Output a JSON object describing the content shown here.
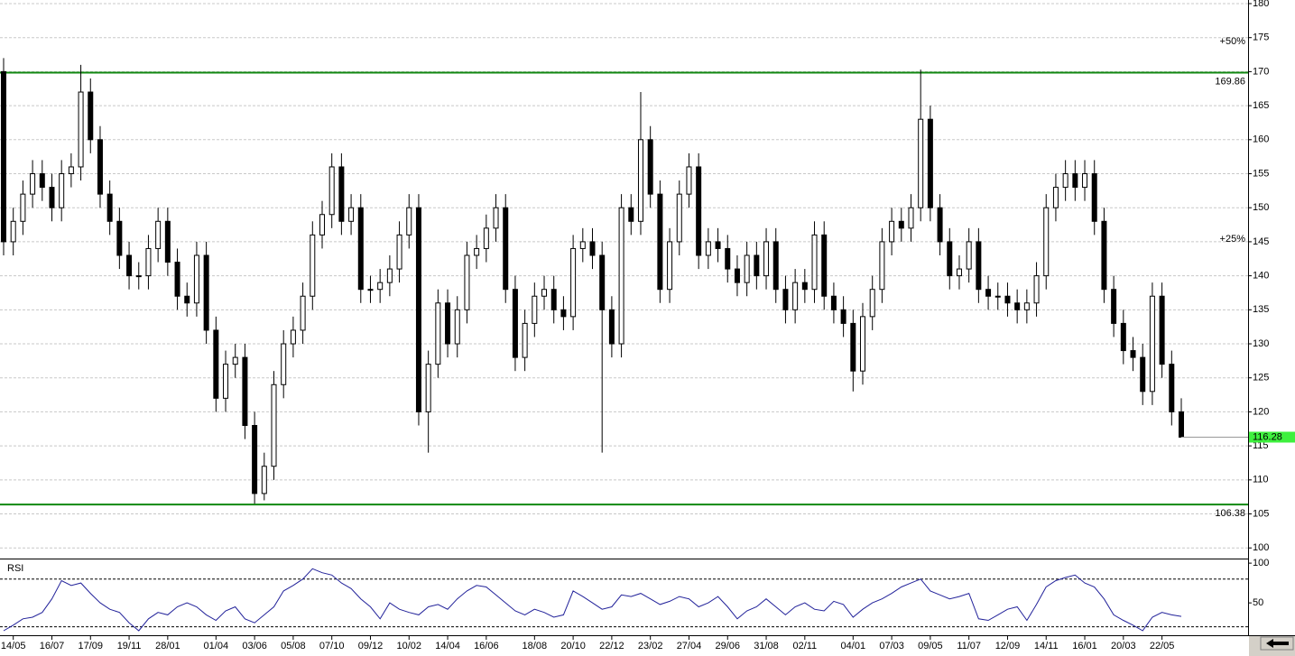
{
  "chart_data": [
    {
      "type": "candlestick",
      "categories": [
        null,
        "14/05",
        null,
        null,
        null,
        "16/07",
        null,
        null,
        null,
        "17/09",
        null,
        null,
        null,
        "19/11",
        null,
        null,
        null,
        "28/01",
        null,
        null,
        null,
        null,
        "01/04",
        null,
        null,
        null,
        "03/06",
        null,
        null,
        null,
        "05/08",
        null,
        null,
        null,
        "07/10",
        null,
        null,
        null,
        "09/12",
        null,
        null,
        null,
        "10/02",
        null,
        null,
        null,
        "14/04",
        null,
        null,
        null,
        "16/06",
        null,
        null,
        null,
        null,
        "18/08",
        null,
        null,
        null,
        "20/10",
        null,
        null,
        null,
        "22/12",
        null,
        null,
        null,
        "23/02",
        null,
        null,
        null,
        "27/04",
        null,
        null,
        null,
        "29/06",
        null,
        null,
        null,
        "31/08",
        null,
        null,
        null,
        "02/11",
        null,
        null,
        null,
        null,
        "04/01",
        null,
        null,
        null,
        "07/03",
        null,
        null,
        null,
        "09/05",
        null,
        null,
        null,
        "11/07",
        null,
        null,
        null,
        "12/09",
        null,
        null,
        null,
        "14/11",
        null,
        null,
        null,
        "16/01",
        null,
        null,
        null,
        "20/03",
        null,
        null,
        null,
        "22/05",
        null,
        null
      ],
      "open": [
        170,
        145,
        148,
        152,
        155,
        153,
        150,
        155,
        156,
        167,
        160,
        152,
        148,
        143,
        140,
        140,
        144,
        148,
        142,
        137,
        136,
        143,
        132,
        122,
        127,
        128,
        118,
        108,
        112,
        124,
        130,
        132,
        137,
        146,
        149,
        156,
        148,
        150,
        138,
        138,
        139,
        141,
        146,
        150,
        120,
        127,
        136,
        130,
        135,
        143,
        144,
        147,
        150,
        138,
        128,
        133,
        137,
        138,
        135,
        134,
        144,
        145,
        143,
        135,
        130,
        150,
        148,
        160,
        152,
        138,
        145,
        152,
        156,
        143,
        145,
        144,
        141,
        139,
        143,
        140,
        145,
        138,
        135,
        139,
        138,
        146,
        137,
        135,
        133,
        126,
        134,
        138,
        145,
        148,
        147,
        150,
        163,
        150,
        145,
        140,
        141,
        145,
        138,
        137,
        137,
        136,
        135,
        136,
        140,
        150,
        153,
        155,
        153,
        155,
        148,
        138,
        133,
        129,
        128,
        123,
        137,
        127,
        120
      ],
      "high": [
        172,
        150,
        154,
        157,
        157,
        155,
        157,
        158,
        171,
        169,
        162,
        154,
        150,
        145,
        142,
        146,
        150,
        150,
        144,
        139,
        145,
        145,
        134,
        129,
        130,
        130,
        120,
        114,
        126,
        132,
        134,
        139,
        148,
        151,
        158,
        158,
        152,
        152,
        140,
        141,
        143,
        148,
        152,
        152,
        129,
        138,
        138,
        137,
        145,
        146,
        149,
        152,
        152,
        140,
        135,
        139,
        140,
        140,
        137,
        146,
        147,
        147,
        145,
        137,
        152,
        152,
        167,
        162,
        154,
        147,
        154,
        158,
        158,
        147,
        147,
        146,
        143,
        145,
        145,
        147,
        147,
        140,
        141,
        141,
        148,
        148,
        139,
        137,
        135,
        136,
        140,
        147,
        150,
        150,
        152,
        170.3,
        165,
        152,
        147,
        143,
        147,
        147,
        140,
        139,
        139,
        138,
        138,
        142,
        152,
        155,
        157,
        157,
        157,
        157,
        150,
        140,
        135,
        131,
        130,
        139,
        139,
        129,
        122
      ],
      "low": [
        143,
        143,
        146,
        150,
        151,
        148,
        148,
        153,
        154,
        158,
        150,
        146,
        141,
        138,
        138,
        138,
        142,
        140,
        135,
        134,
        134,
        130,
        120,
        120,
        125,
        116,
        106.5,
        107,
        110,
        122,
        128,
        130,
        135,
        144,
        147,
        146,
        146,
        136,
        136,
        136,
        137,
        139,
        144,
        118,
        114,
        125,
        128,
        128,
        133,
        141,
        142,
        145,
        136,
        126,
        126,
        131,
        135,
        133,
        132,
        132,
        142,
        141,
        114,
        128,
        128,
        146,
        146,
        150,
        136,
        136,
        143,
        150,
        141,
        141,
        142,
        139,
        137,
        137,
        138,
        138,
        136,
        133,
        133,
        136,
        136,
        135,
        133,
        131,
        123,
        124,
        132,
        136,
        143,
        145,
        145,
        148,
        148,
        143,
        138,
        138,
        139,
        136,
        135,
        135,
        134,
        133,
        133,
        134,
        138,
        148,
        151,
        151,
        151,
        146,
        136,
        131,
        127,
        126,
        121,
        121,
        125,
        118,
        116.28
      ],
      "close": [
        145,
        148,
        152,
        155,
        153,
        150,
        155,
        156,
        167,
        160,
        152,
        148,
        143,
        140,
        140,
        144,
        148,
        142,
        137,
        136,
        143,
        132,
        122,
        127,
        128,
        118,
        108,
        112,
        124,
        130,
        132,
        137,
        146,
        149,
        156,
        148,
        150,
        138,
        138,
        139,
        141,
        146,
        150,
        120,
        127,
        136,
        130,
        135,
        143,
        144,
        147,
        150,
        138,
        128,
        133,
        137,
        138,
        135,
        134,
        144,
        145,
        143,
        135,
        130,
        150,
        148,
        160,
        152,
        138,
        145,
        152,
        156,
        143,
        145,
        144,
        141,
        139,
        143,
        140,
        145,
        138,
        135,
        139,
        138,
        146,
        137,
        135,
        133,
        126,
        134,
        138,
        145,
        148,
        147,
        150,
        163,
        150,
        145,
        140,
        141,
        145,
        138,
        137,
        137,
        136,
        135,
        136,
        140,
        150,
        153,
        155,
        153,
        155,
        148,
        138,
        133,
        129,
        128,
        123,
        137,
        127,
        120,
        116.28
      ],
      "ylim": [
        98.44,
        180.53
      ],
      "yticks": [
        100,
        105,
        110,
        115,
        120,
        125,
        130,
        135,
        140,
        145,
        150,
        155,
        160,
        165,
        170,
        175,
        180
      ],
      "grid": true,
      "hlines": [
        169.86,
        106.38
      ],
      "hline_color": "#118811",
      "levels": [
        {
          "value": 174.42,
          "label": "+50%"
        },
        {
          "value": 145.35,
          "label": "+25%"
        }
      ],
      "last_color": "#3ef03e"
    },
    {
      "type": "line",
      "title": "RSI",
      "color": "#22229a",
      "values": [
        15,
        22,
        30,
        32,
        38,
        55,
        78,
        72,
        75,
        62,
        50,
        42,
        38,
        25,
        15,
        30,
        38,
        35,
        45,
        50,
        45,
        35,
        28,
        40,
        45,
        30,
        25,
        35,
        45,
        65,
        72,
        80,
        93,
        88,
        85,
        75,
        68,
        55,
        45,
        30,
        50,
        42,
        38,
        35,
        45,
        48,
        42,
        55,
        65,
        72,
        70,
        60,
        50,
        40,
        35,
        42,
        38,
        32,
        35,
        65,
        58,
        50,
        42,
        45,
        60,
        58,
        62,
        55,
        48,
        52,
        58,
        55,
        45,
        50,
        58,
        45,
        30,
        40,
        45,
        55,
        45,
        35,
        45,
        50,
        42,
        40,
        52,
        48,
        32,
        42,
        50,
        55,
        62,
        70,
        75,
        80,
        65,
        60,
        55,
        58,
        62,
        30,
        28,
        35,
        42,
        45,
        28,
        48,
        70,
        78,
        82,
        85,
        75,
        70,
        55,
        35,
        28,
        22,
        15,
        32,
        38,
        35,
        33
      ],
      "ylim": [
        9.3,
        104.65
      ],
      "yticks": [
        50,
        100
      ],
      "ref_lines": [
        20,
        80
      ]
    }
  ]
}
